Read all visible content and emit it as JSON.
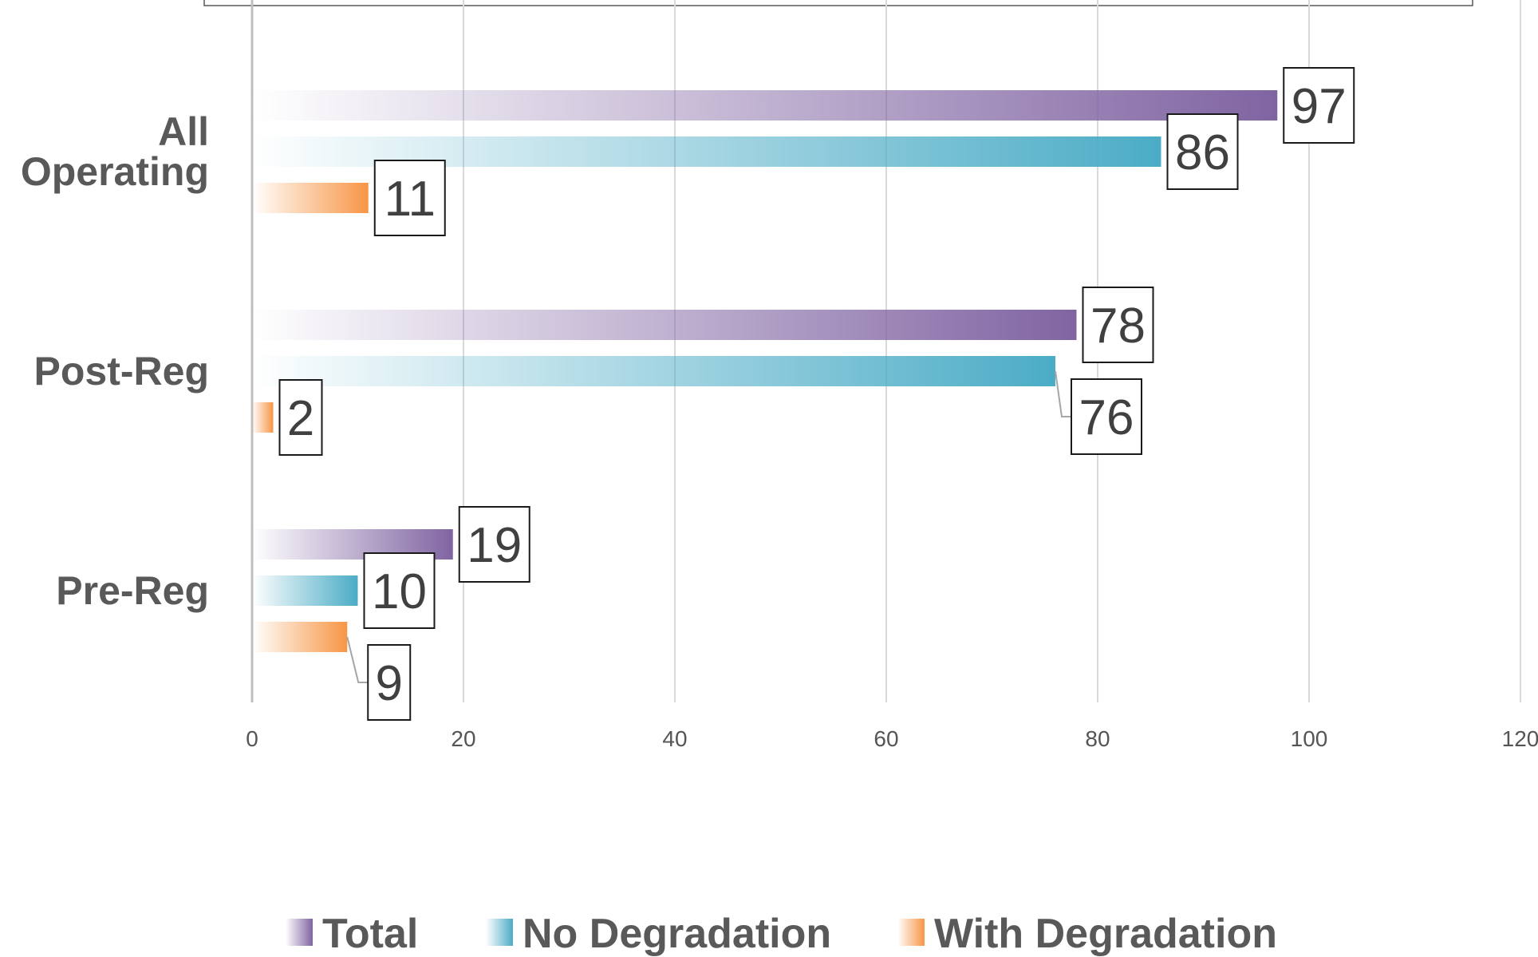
{
  "chart_data": {
    "type": "bar",
    "orientation": "horizontal",
    "categories": [
      "All Operating",
      "Post-Reg",
      "Pre-Reg"
    ],
    "category_lines": [
      [
        "All",
        "Operating"
      ],
      [
        "Post-Reg"
      ],
      [
        "Pre-Reg"
      ]
    ],
    "series": [
      {
        "name": "Total",
        "values": [
          97,
          78,
          19
        ],
        "color": "#8064A2"
      },
      {
        "name": "No Degradation",
        "values": [
          86,
          76,
          10
        ],
        "color": "#4BACC6"
      },
      {
        "name": "With Degradation",
        "values": [
          11,
          2,
          9
        ],
        "color": "#F79646"
      }
    ],
    "xlim": [
      0,
      120
    ],
    "xticks": [
      0,
      20,
      40,
      60,
      80,
      100,
      120
    ],
    "grid": true,
    "legend": "bottom",
    "data_labels": true,
    "title": "",
    "xlabel": "",
    "ylabel": ""
  }
}
